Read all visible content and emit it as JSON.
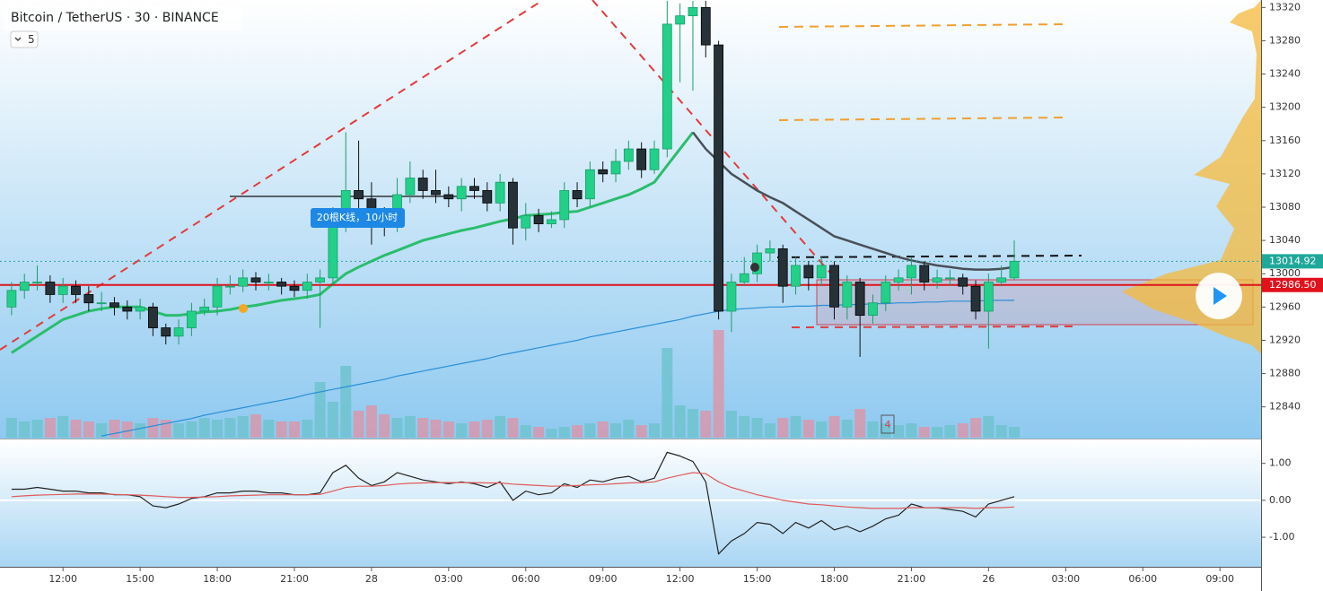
{
  "chart_data": {
    "type": "candlestick",
    "title": "Bitcoin / TetherUS · 30 · BINANCE",
    "indicator_badge": "5",
    "annotation": "20根K线，10小时",
    "marker_label": "4",
    "up_color": "#22d08a",
    "down_color": "#263238",
    "volume_up_color": "#6fc3cf",
    "volume_down_color": "#d898ab",
    "xlim": [
      -0.9,
      97.2
    ],
    "xticks": [
      {
        "value": 4,
        "label": "12:00"
      },
      {
        "value": 10,
        "label": "15:00"
      },
      {
        "value": 16,
        "label": "18:00"
      },
      {
        "value": 22,
        "label": "21:00"
      },
      28,
      {
        "value": 34,
        "label": "03:00"
      },
      {
        "value": 40,
        "label": "06:00"
      },
      {
        "value": 46,
        "label": "09:00"
      },
      {
        "value": 52,
        "label": "12:00"
      },
      {
        "value": 58,
        "label": "15:00"
      },
      {
        "value": 64,
        "label": "18:00"
      },
      {
        "value": 70,
        "label": "21:00"
      },
      {
        "value": 76,
        "label": "26"
      },
      {
        "value": 82,
        "label": "03:00"
      },
      {
        "value": 88,
        "label": "06:00"
      },
      {
        "value": 94,
        "label": "09:00"
      }
    ],
    "ylim": [
      12803,
      13329
    ],
    "yticks": [
      12840,
      12880,
      12920,
      12960,
      13000,
      13040,
      13080,
      13120,
      13160,
      13200,
      13240,
      13280,
      13320
    ],
    "open": [
      12960,
      12980,
      12990,
      12990,
      12975,
      12985,
      12975,
      12965,
      12965,
      12960,
      12955,
      12960,
      12935,
      12925,
      12935,
      12955,
      12960,
      12985,
      12985,
      12995,
      12990,
      12990,
      12985,
      12980,
      12990,
      12995,
      13065,
      13100,
      13090,
      13070,
      13060,
      13095,
      13115,
      13100,
      13095,
      13090,
      13105,
      13100,
      13085,
      13110,
      13055,
      13070,
      13060,
      13065,
      13100,
      13090,
      13125,
      13120,
      13135,
      13150,
      13125,
      13150,
      13300,
      13310,
      13320,
      13275,
      12955,
      12990,
      13000,
      13025,
      13030,
      12985,
      13010,
      12995,
      13010,
      12960,
      12990,
      12950,
      12965,
      12990,
      12995,
      13010,
      12990,
      12995,
      12995,
      12985,
      12955,
      12990,
      12995
    ],
    "high": [
      12990,
      13000,
      13010,
      12998,
      12995,
      12992,
      12985,
      12978,
      12972,
      12968,
      12970,
      12965,
      12940,
      12945,
      12965,
      12970,
      12995,
      12998,
      13005,
      13002,
      13000,
      12995,
      12992,
      13000,
      13005,
      13080,
      13170,
      13160,
      13110,
      13080,
      13115,
      13135,
      13125,
      13125,
      13105,
      13115,
      13115,
      13110,
      13120,
      13115,
      13085,
      13078,
      13075,
      13110,
      13110,
      13135,
      13135,
      13150,
      13160,
      13158,
      13160,
      13328,
      13325,
      13328,
      13328,
      13280,
      13000,
      13020,
      13035,
      13040,
      13035,
      13020,
      13015,
      13020,
      13015,
      12998,
      12995,
      12975,
      12998,
      13005,
      13020,
      13015,
      13005,
      13005,
      13000,
      12992,
      13000,
      13010,
      13040
    ],
    "low": [
      12950,
      12970,
      12980,
      12965,
      12965,
      12965,
      12955,
      12955,
      12950,
      12945,
      12945,
      12925,
      12915,
      12915,
      12925,
      12950,
      12950,
      12975,
      12978,
      12980,
      12980,
      12975,
      12972,
      12970,
      12935,
      12985,
      13050,
      13075,
      13035,
      13045,
      13050,
      13085,
      13090,
      13085,
      13080,
      13075,
      13090,
      13075,
      13075,
      13035,
      13040,
      13050,
      13055,
      13055,
      13080,
      13080,
      13110,
      13110,
      13125,
      13115,
      13120,
      13140,
      13230,
      13220,
      13260,
      12945,
      12930,
      12985,
      12990,
      13015,
      12965,
      12975,
      12980,
      12985,
      12945,
      12945,
      12900,
      12940,
      12955,
      12980,
      12975,
      12980,
      12982,
      12985,
      12975,
      12945,
      12910,
      12985,
      12992
    ],
    "close": [
      12980,
      12990,
      12990,
      12975,
      12985,
      12975,
      12965,
      12965,
      12960,
      12955,
      12960,
      12935,
      12925,
      12935,
      12955,
      12960,
      12985,
      12985,
      12995,
      12990,
      12990,
      12985,
      12980,
      12990,
      12995,
      13065,
      13100,
      13090,
      13070,
      13060,
      13095,
      13115,
      13100,
      13095,
      13090,
      13105,
      13100,
      13085,
      13110,
      13055,
      13070,
      13060,
      13065,
      13100,
      13090,
      13125,
      13120,
      13135,
      13150,
      13125,
      13150,
      13300,
      13310,
      13320,
      13275,
      12955,
      12990,
      13000,
      13025,
      13030,
      12985,
      13010,
      12995,
      13010,
      12960,
      12990,
      12950,
      12965,
      12990,
      12995,
      13010,
      12990,
      12995,
      12995,
      12985,
      12955,
      12990,
      12995,
      13015
    ],
    "volume": [
      22,
      18,
      20,
      22,
      24,
      20,
      18,
      16,
      20,
      18,
      16,
      22,
      20,
      16,
      18,
      22,
      20,
      22,
      24,
      26,
      20,
      18,
      18,
      20,
      62,
      40,
      80,
      30,
      36,
      26,
      22,
      24,
      22,
      20,
      18,
      16,
      18,
      20,
      24,
      22,
      14,
      12,
      10,
      12,
      14,
      16,
      18,
      16,
      20,
      14,
      16,
      100,
      36,
      32,
      30,
      120,
      30,
      24,
      22,
      16,
      22,
      24,
      20,
      18,
      24,
      20,
      32,
      18,
      16,
      14,
      16,
      12,
      12,
      14,
      16,
      22,
      24,
      14,
      12
    ],
    "series": [
      {
        "color": "#2bbd6e",
        "width": 3,
        "values": [
          12905,
          12915,
          12925,
          12935,
          12945,
          12950,
          12955,
          12958,
          12960,
          12960,
          12960,
          12955,
          12950,
          12950,
          12952,
          12954,
          12955,
          12957,
          12960,
          12962,
          12965,
          12968,
          12970,
          12972,
          12975,
          12988,
          13000,
          13008,
          13015,
          13022,
          13028,
          13034,
          13040,
          13044,
          13048,
          13052,
          13055,
          13059,
          13063,
          13066,
          13070,
          13071,
          13072,
          13074,
          13075,
          13080,
          13085,
          13090,
          13095,
          13102,
          13110,
          13130,
          13150,
          13170,
          null,
          null,
          null,
          null,
          null,
          null,
          null,
          null,
          null,
          null,
          null,
          null,
          null,
          null,
          null,
          null,
          null,
          null,
          null,
          null,
          null,
          null,
          null,
          null,
          null
        ]
      },
      {
        "color": "#4a4f57",
        "width": 2.5,
        "values": [
          null,
          null,
          null,
          null,
          null,
          null,
          null,
          null,
          null,
          null,
          null,
          null,
          null,
          null,
          null,
          null,
          null,
          null,
          null,
          null,
          null,
          null,
          null,
          null,
          null,
          null,
          null,
          null,
          null,
          null,
          null,
          null,
          null,
          null,
          null,
          null,
          null,
          null,
          null,
          null,
          null,
          null,
          null,
          null,
          null,
          null,
          null,
          null,
          null,
          null,
          null,
          null,
          null,
          13170,
          13150,
          13135,
          13120,
          13110,
          13100,
          13092,
          13085,
          13075,
          13065,
          13055,
          13045,
          13040,
          13035,
          13030,
          13025,
          13020,
          13016,
          13013,
          13010,
          13008,
          13006,
          13005,
          13005,
          13006,
          13008
        ]
      },
      {
        "color": "#2a8fd8",
        "width": 1.2,
        "values": [
          null,
          null,
          null,
          null,
          null,
          null,
          null,
          12805,
          12808,
          12811,
          12814,
          12817,
          12820,
          12823,
          12826,
          12830,
          12833,
          12836,
          12839,
          12842,
          12845,
          12848,
          12851,
          12855,
          12858,
          12861,
          12864,
          12867,
          12870,
          12873,
          12877,
          12880,
          12883,
          12886,
          12889,
          12892,
          12895,
          12898,
          12902,
          12905,
          12908,
          12911,
          12914,
          12917,
          12920,
          12924,
          12927,
          12930,
          12933,
          12936,
          12939,
          12942,
          12945,
          12949,
          12952,
          12955,
          12957,
          12958,
          12959,
          12960,
          12960,
          12961,
          12961,
          12962,
          12962,
          12963,
          12963,
          12964,
          12964,
          12965,
          12965,
          12966,
          12966,
          12967,
          12967,
          12967,
          12968,
          12968,
          12968
        ]
      }
    ],
    "price_labels": [
      {
        "value": 13014.92,
        "label": "13014.92",
        "color": "#1fa89a"
      },
      {
        "value": 12986.5,
        "label": "12986.50",
        "color": "#e0121c"
      }
    ],
    "oscillator": {
      "ylim": [
        -1.8,
        1.6
      ],
      "yticks": [
        {
          "value": 1,
          "label": "1.00"
        },
        {
          "value": 0,
          "label": "0.00"
        },
        {
          "value": -1,
          "label": "-1.00"
        }
      ],
      "series": [
        {
          "color": "#222222",
          "values": [
            0.3,
            0.3,
            0.35,
            0.3,
            0.25,
            0.25,
            0.2,
            0.2,
            0.15,
            0.15,
            0.1,
            -0.15,
            -0.2,
            -0.1,
            0.05,
            0.1,
            0.2,
            0.2,
            0.25,
            0.25,
            0.2,
            0.2,
            0.15,
            0.15,
            0.2,
            0.75,
            0.95,
            0.6,
            0.4,
            0.5,
            0.75,
            0.65,
            0.55,
            0.5,
            0.45,
            0.5,
            0.45,
            0.35,
            0.5,
            0.0,
            0.25,
            0.15,
            0.2,
            0.45,
            0.35,
            0.55,
            0.5,
            0.6,
            0.65,
            0.5,
            0.6,
            1.3,
            1.2,
            1.05,
            0.5,
            -1.45,
            -1.1,
            -0.9,
            -0.6,
            -0.65,
            -0.9,
            -0.6,
            -0.75,
            -0.55,
            -0.8,
            -0.7,
            -0.85,
            -0.7,
            -0.5,
            -0.4,
            -0.1,
            -0.2,
            -0.2,
            -0.25,
            -0.3,
            -0.45,
            -0.1,
            0.0,
            0.1
          ]
        },
        {
          "color": "#e05a5a",
          "values": [
            0.1,
            0.12,
            0.14,
            0.15,
            0.16,
            0.17,
            0.17,
            0.17,
            0.16,
            0.15,
            0.14,
            0.12,
            0.1,
            0.08,
            0.08,
            0.09,
            0.1,
            0.12,
            0.13,
            0.14,
            0.15,
            0.15,
            0.15,
            0.15,
            0.16,
            0.25,
            0.35,
            0.38,
            0.38,
            0.4,
            0.44,
            0.46,
            0.47,
            0.48,
            0.48,
            0.48,
            0.48,
            0.47,
            0.47,
            0.44,
            0.42,
            0.4,
            0.38,
            0.39,
            0.4,
            0.42,
            0.43,
            0.45,
            0.47,
            0.48,
            0.5,
            0.6,
            0.68,
            0.75,
            0.72,
            0.5,
            0.35,
            0.25,
            0.15,
            0.08,
            0.0,
            -0.05,
            -0.1,
            -0.12,
            -0.15,
            -0.18,
            -0.2,
            -0.22,
            -0.22,
            -0.22,
            -0.2,
            -0.2,
            -0.2,
            -0.2,
            -0.2,
            -0.22,
            -0.2,
            -0.2,
            -0.18
          ]
        }
      ]
    }
  }
}
